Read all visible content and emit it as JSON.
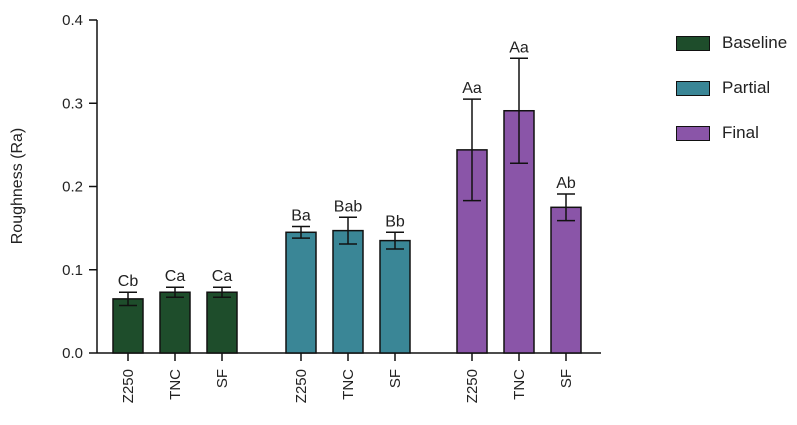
{
  "chart_data": {
    "type": "bar",
    "ylabel": "Roughness (Ra)",
    "ylim": [
      0,
      0.4
    ],
    "yticks": [
      "0.0",
      "0.1",
      "0.2",
      "0.3",
      "0.4"
    ],
    "ytick_values": [
      0,
      0.1,
      0.2,
      0.3,
      0.4
    ],
    "legend_position": "top-right",
    "groups": [
      {
        "name": "Baseline",
        "color": "#1e4d2b",
        "categories": [
          "Z250",
          "TNC",
          "SF"
        ],
        "values": [
          0.065,
          0.073,
          0.073
        ],
        "errors": [
          0.008,
          0.006,
          0.006
        ],
        "labels": [
          "Cb",
          "Ca",
          "Ca"
        ]
      },
      {
        "name": "Partial",
        "color": "#3a8696",
        "categories": [
          "Z250",
          "TNC",
          "SF"
        ],
        "values": [
          0.145,
          0.147,
          0.135
        ],
        "errors": [
          0.007,
          0.016,
          0.01
        ],
        "labels": [
          "Ba",
          "Bab",
          "Bb"
        ]
      },
      {
        "name": "Final",
        "color": "#8a55a8",
        "categories": [
          "Z250",
          "TNC",
          "SF"
        ],
        "values": [
          0.244,
          0.291,
          0.175
        ],
        "errors": [
          0.061,
          0.063,
          0.016
        ],
        "labels": [
          "Aa",
          "Aa",
          "Ab"
        ]
      }
    ]
  }
}
